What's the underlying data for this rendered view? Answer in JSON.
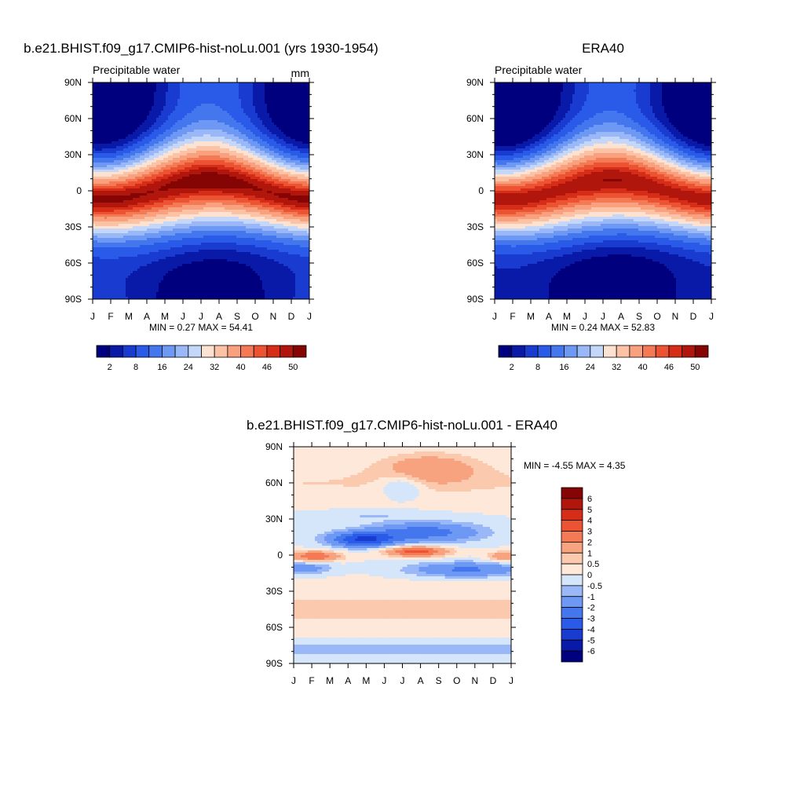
{
  "figure": {
    "panels": [
      {
        "title": "b.e21.BHIST.f09_g17.CMIP6-hist-noLu.001 (yrs 1930-1954)",
        "left_label": "Precipitable water",
        "right_label": "mm",
        "stats": "MIN =   0.27 MAX =  54.41"
      },
      {
        "title": "ERA40",
        "left_label": "Precipitable water",
        "right_label": "",
        "stats": "MIN =   0.24 MAX =  52.83"
      },
      {
        "title": "b.e21.BHIST.f09_g17.CMIP6-hist-noLu.001 - ERA40",
        "left_label": "",
        "right_label": "",
        "stats": "MIN =  -4.55 MAX =   4.35"
      }
    ],
    "colorbar_top": {
      "colors": [
        "#00007f",
        "#0a1aa8",
        "#1a3bcf",
        "#2a5ae8",
        "#4477ee",
        "#6d98f4",
        "#9ab8f7",
        "#c4d7f8",
        "#fde2d2",
        "#fbc2a6",
        "#f9a07e",
        "#f47a56",
        "#eb5333",
        "#d52d17",
        "#b0160b",
        "#850505"
      ],
      "labels": [
        "2",
        "8",
        "16",
        "24",
        "32",
        "40",
        "46",
        "50"
      ]
    },
    "colorbar_diff": {
      "colors": [
        "#00007f",
        "#0a1aa8",
        "#1a3bcf",
        "#2a5ae8",
        "#4477ee",
        "#6d98f4",
        "#9ab8f7",
        "#d6e6fa",
        "#fde8da",
        "#fbc9ad",
        "#f8a37f",
        "#f47a56",
        "#eb5333",
        "#d52d17",
        "#b0160b",
        "#850505"
      ],
      "labels": [
        "-6",
        "-5",
        "-4",
        "-3",
        "-2",
        "-1",
        "-0.5",
        "0",
        "0.5",
        "1",
        "2",
        "3",
        "4",
        "5",
        "6"
      ]
    }
  },
  "chart_data": [
    {
      "type": "heatmap",
      "title": "b.e21.BHIST.f09_g17.CMIP6-hist-noLu.001 (yrs 1930-1954)",
      "variable": "Precipitable water",
      "units": "mm",
      "x_ticks": [
        "J",
        "F",
        "M",
        "A",
        "M",
        "J",
        "J",
        "A",
        "S",
        "O",
        "N",
        "D",
        "J"
      ],
      "y_ticks": [
        "90N",
        "60N",
        "30N",
        "0",
        "30S",
        "60S",
        "90S"
      ],
      "contour_levels": [
        2,
        5,
        8,
        12,
        16,
        20,
        24,
        28,
        32,
        36,
        40,
        43,
        46,
        48,
        50
      ],
      "min": 0.27,
      "max": 54.41
    },
    {
      "type": "heatmap",
      "title": "ERA40",
      "variable": "Precipitable water",
      "x_ticks": [
        "J",
        "F",
        "M",
        "A",
        "M",
        "J",
        "J",
        "A",
        "S",
        "O",
        "N",
        "D",
        "J"
      ],
      "y_ticks": [
        "90N",
        "60N",
        "30N",
        "0",
        "30S",
        "60S",
        "90S"
      ],
      "contour_levels": [
        2,
        5,
        8,
        12,
        16,
        20,
        24,
        28,
        32,
        36,
        40,
        43,
        46,
        48,
        50
      ],
      "min": 0.24,
      "max": 52.83
    },
    {
      "type": "heatmap",
      "title": "b.e21.BHIST.f09_g17.CMIP6-hist-noLu.001 - ERA40",
      "x_ticks": [
        "J",
        "F",
        "M",
        "A",
        "M",
        "J",
        "J",
        "A",
        "S",
        "O",
        "N",
        "D",
        "J"
      ],
      "y_ticks": [
        "90N",
        "60N",
        "30N",
        "0",
        "30S",
        "60S",
        "90S"
      ],
      "contour_levels": [
        -6,
        -5,
        -4,
        -3,
        -2,
        -1,
        -0.5,
        0,
        0.5,
        1,
        2,
        3,
        4,
        5,
        6
      ],
      "min": -4.55,
      "max": 4.35
    }
  ]
}
